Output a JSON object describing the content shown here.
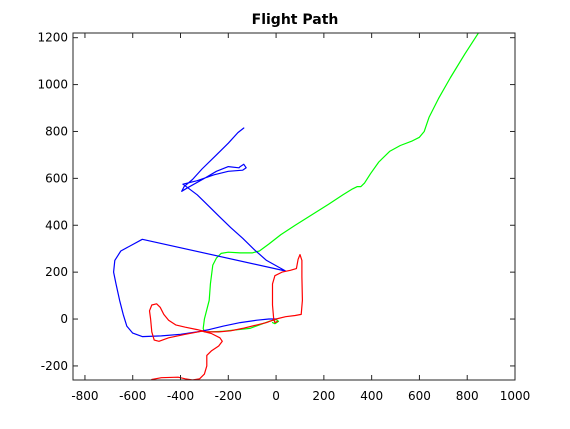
{
  "chart_data": {
    "type": "line",
    "title": "Flight Path",
    "xlabel": "",
    "ylabel": "",
    "xlim": [
      -850,
      1000
    ],
    "ylim": [
      -260,
      1220
    ],
    "xticks": [
      -800,
      -600,
      -400,
      -200,
      0,
      200,
      400,
      600,
      800,
      1000
    ],
    "yticks": [
      -200,
      0,
      200,
      400,
      600,
      800,
      1000,
      1200
    ],
    "grid": false,
    "legend": "none",
    "series": [
      {
        "color": "#00ff00",
        "points": [
          [
            850,
            1225
          ],
          [
            790,
            1130
          ],
          [
            730,
            1030
          ],
          [
            680,
            940
          ],
          [
            640,
            860
          ],
          [
            620,
            800
          ],
          [
            600,
            775
          ],
          [
            570,
            760
          ],
          [
            520,
            740
          ],
          [
            475,
            715
          ],
          [
            430,
            670
          ],
          [
            395,
            620
          ],
          [
            370,
            580
          ],
          [
            355,
            565
          ],
          [
            340,
            565
          ],
          [
            320,
            555
          ],
          [
            280,
            530
          ],
          [
            220,
            490
          ],
          [
            150,
            445
          ],
          [
            80,
            400
          ],
          [
            20,
            360
          ],
          [
            -30,
            320
          ],
          [
            -70,
            290
          ],
          [
            -100,
            282
          ],
          [
            -150,
            282
          ],
          [
            -200,
            285
          ],
          [
            -230,
            280
          ],
          [
            -250,
            260
          ],
          [
            -265,
            230
          ],
          [
            -275,
            150
          ],
          [
            -280,
            80
          ],
          [
            -290,
            40
          ],
          [
            -300,
            0
          ],
          [
            -305,
            -40
          ],
          [
            -300,
            -55
          ],
          [
            -270,
            -55
          ],
          [
            -220,
            -52
          ],
          [
            -160,
            -45
          ],
          [
            -110,
            -40
          ],
          [
            -70,
            -25
          ],
          [
            -30,
            -10
          ],
          [
            0,
            -2
          ],
          [
            10,
            -10
          ],
          [
            -5,
            -20
          ],
          [
            -15,
            -15
          ]
        ]
      },
      {
        "color": "#0000ff",
        "points": [
          [
            -135,
            815
          ],
          [
            -160,
            795
          ],
          [
            -200,
            750
          ],
          [
            -250,
            700
          ],
          [
            -310,
            640
          ],
          [
            -350,
            595
          ],
          [
            -385,
            565
          ],
          [
            -395,
            545
          ],
          [
            -370,
            560
          ],
          [
            -300,
            600
          ],
          [
            -250,
            630
          ],
          [
            -200,
            650
          ],
          [
            -155,
            645
          ],
          [
            -150,
            650
          ],
          [
            -135,
            660
          ],
          [
            -125,
            645
          ],
          [
            -140,
            635
          ],
          [
            -200,
            630
          ],
          [
            -260,
            615
          ],
          [
            -330,
            590
          ],
          [
            -390,
            575
          ],
          [
            -370,
            560
          ],
          [
            -330,
            530
          ],
          [
            -300,
            500
          ],
          [
            -240,
            440
          ],
          [
            -190,
            390
          ],
          [
            -140,
            345
          ],
          [
            -90,
            295
          ],
          [
            -40,
            250
          ],
          [
            40,
            205
          ],
          [
            -560,
            340
          ],
          [
            -650,
            290
          ],
          [
            -675,
            250
          ],
          [
            -680,
            200
          ],
          [
            -670,
            150
          ],
          [
            -655,
            80
          ],
          [
            -640,
            20
          ],
          [
            -625,
            -30
          ],
          [
            -600,
            -60
          ],
          [
            -560,
            -75
          ],
          [
            -480,
            -72
          ],
          [
            -400,
            -65
          ],
          [
            -330,
            -55
          ],
          [
            -280,
            -45
          ],
          [
            -220,
            -30
          ],
          [
            -150,
            -15
          ],
          [
            -80,
            -5
          ],
          [
            -30,
            0
          ],
          [
            0,
            0
          ]
        ]
      },
      {
        "color": "#ff0000",
        "points": [
          [
            -520,
            -258
          ],
          [
            -480,
            -250
          ],
          [
            -410,
            -248
          ],
          [
            -380,
            -255
          ],
          [
            -350,
            -260
          ],
          [
            -320,
            -255
          ],
          [
            -300,
            -235
          ],
          [
            -290,
            -200
          ],
          [
            -290,
            -155
          ],
          [
            -270,
            -135
          ],
          [
            -240,
            -115
          ],
          [
            -225,
            -95
          ],
          [
            -235,
            -80
          ],
          [
            -270,
            -62
          ],
          [
            -310,
            -52
          ],
          [
            -380,
            -65
          ],
          [
            -450,
            -80
          ],
          [
            -490,
            -95
          ],
          [
            -510,
            -90
          ],
          [
            -520,
            -55
          ],
          [
            -525,
            0
          ],
          [
            -530,
            35
          ],
          [
            -520,
            60
          ],
          [
            -500,
            65
          ],
          [
            -485,
            50
          ],
          [
            -470,
            20
          ],
          [
            -450,
            -5
          ],
          [
            -420,
            -25
          ],
          [
            -380,
            -35
          ],
          [
            -330,
            -45
          ],
          [
            -290,
            -55
          ],
          [
            -240,
            -55
          ],
          [
            -190,
            -50
          ],
          [
            -140,
            -40
          ],
          [
            -80,
            -25
          ],
          [
            -40,
            -15
          ],
          [
            0,
            0
          ],
          [
            40,
            10
          ],
          [
            80,
            15
          ],
          [
            105,
            20
          ],
          [
            110,
            80
          ],
          [
            108,
            180
          ],
          [
            108,
            250
          ],
          [
            100,
            275
          ],
          [
            92,
            255
          ],
          [
            85,
            215
          ],
          [
            60,
            208
          ],
          [
            25,
            200
          ],
          [
            -5,
            185
          ],
          [
            -15,
            150
          ],
          [
            -15,
            60
          ],
          [
            -10,
            0
          ],
          [
            -5,
            -15
          ],
          [
            5,
            -10
          ]
        ]
      }
    ]
  }
}
